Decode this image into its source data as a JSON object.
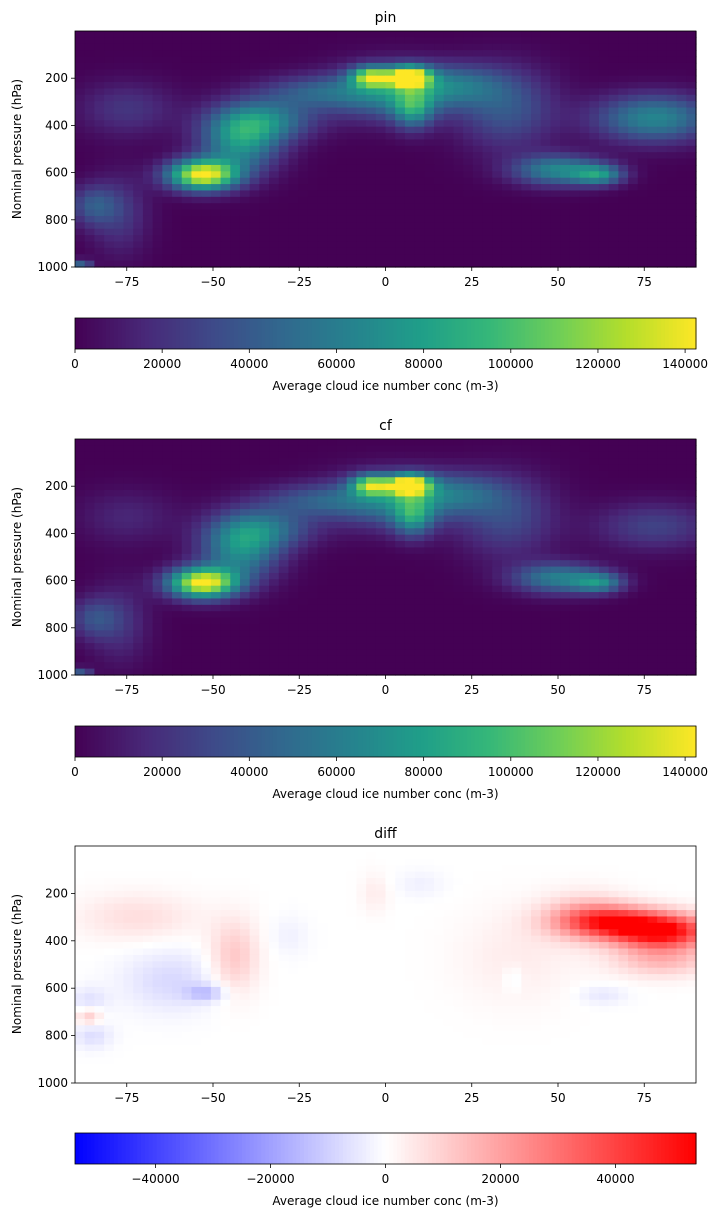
{
  "chart_data": [
    {
      "type": "heatmap",
      "title": "pin",
      "ylabel": "Nominal pressure (hPa)",
      "xlabel": "",
      "xlim": [
        -90,
        90
      ],
      "ylim": [
        1000,
        0
      ],
      "xticks": [
        -75,
        -50,
        -25,
        0,
        25,
        50,
        75
      ],
      "yticks": [
        200,
        400,
        600,
        800,
        1000
      ],
      "colormap": "viridis",
      "colorbar": {
        "label": "Average cloud ice number conc (m-3)",
        "range": [
          0,
          142500
        ],
        "ticks": [
          0,
          20000,
          40000,
          60000,
          80000,
          100000,
          120000,
          140000
        ],
        "orientation": "horizontal"
      },
      "features": [
        {
          "lat": -53,
          "p": 610,
          "value": 140000,
          "sx": 7,
          "sy": 45
        },
        {
          "lat": -42,
          "p": 470,
          "value": 70000,
          "sx": 8,
          "sy": 90
        },
        {
          "lat": -35,
          "p": 380,
          "value": 55000,
          "sx": 10,
          "sy": 60
        },
        {
          "lat": -20,
          "p": 260,
          "value": 38000,
          "sx": 12,
          "sy": 50
        },
        {
          "lat": 7,
          "p": 195,
          "value": 142000,
          "sx": 4,
          "sy": 30
        },
        {
          "lat": -4,
          "p": 195,
          "value": 100000,
          "sx": 4,
          "sy": 30
        },
        {
          "lat": 2,
          "p": 260,
          "value": 60000,
          "sx": 12,
          "sy": 80
        },
        {
          "lat": 8,
          "p": 330,
          "value": 55000,
          "sx": 4,
          "sy": 60
        },
        {
          "lat": 20,
          "p": 230,
          "value": 40000,
          "sx": 10,
          "sy": 60
        },
        {
          "lat": 35,
          "p": 330,
          "value": 38000,
          "sx": 10,
          "sy": 120
        },
        {
          "lat": 50,
          "p": 590,
          "value": 65000,
          "sx": 9,
          "sy": 45
        },
        {
          "lat": 62,
          "p": 610,
          "value": 60000,
          "sx": 5,
          "sy": 30
        },
        {
          "lat": 78,
          "p": 370,
          "value": 65000,
          "sx": 12,
          "sy": 70
        },
        {
          "lat": -75,
          "p": 330,
          "value": 22000,
          "sx": 10,
          "sy": 80
        },
        {
          "lat": -85,
          "p": 740,
          "value": 35000,
          "sx": 5,
          "sy": 60
        },
        {
          "lat": -77,
          "p": 780,
          "value": 22000,
          "sx": 6,
          "sy": 120
        },
        {
          "lat": -88,
          "p": 990,
          "value": 45000,
          "sx": 2,
          "sy": 15
        }
      ]
    },
    {
      "type": "heatmap",
      "title": "cf",
      "ylabel": "Nominal pressure (hPa)",
      "xlabel": "",
      "xlim": [
        -90,
        90
      ],
      "ylim": [
        1000,
        0
      ],
      "xticks": [
        -75,
        -50,
        -25,
        0,
        25,
        50,
        75
      ],
      "yticks": [
        200,
        400,
        600,
        800,
        1000
      ],
      "colormap": "viridis",
      "colorbar": {
        "label": "Average cloud ice number conc (m-3)",
        "range": [
          0,
          142500
        ],
        "ticks": [
          0,
          20000,
          40000,
          60000,
          80000,
          100000,
          120000,
          140000
        ],
        "orientation": "horizontal"
      },
      "features": [
        {
          "lat": -53,
          "p": 610,
          "value": 142000,
          "sx": 7,
          "sy": 45
        },
        {
          "lat": -42,
          "p": 470,
          "value": 65000,
          "sx": 8,
          "sy": 90
        },
        {
          "lat": -35,
          "p": 380,
          "value": 45000,
          "sx": 10,
          "sy": 60
        },
        {
          "lat": -20,
          "p": 260,
          "value": 35000,
          "sx": 12,
          "sy": 50
        },
        {
          "lat": 7,
          "p": 195,
          "value": 142000,
          "sx": 4,
          "sy": 30
        },
        {
          "lat": -4,
          "p": 195,
          "value": 95000,
          "sx": 4,
          "sy": 30
        },
        {
          "lat": 2,
          "p": 260,
          "value": 55000,
          "sx": 12,
          "sy": 80
        },
        {
          "lat": 8,
          "p": 330,
          "value": 55000,
          "sx": 4,
          "sy": 60
        },
        {
          "lat": 20,
          "p": 230,
          "value": 38000,
          "sx": 10,
          "sy": 60
        },
        {
          "lat": 35,
          "p": 330,
          "value": 32000,
          "sx": 10,
          "sy": 120
        },
        {
          "lat": 50,
          "p": 590,
          "value": 60000,
          "sx": 9,
          "sy": 45
        },
        {
          "lat": 62,
          "p": 610,
          "value": 55000,
          "sx": 5,
          "sy": 30
        },
        {
          "lat": 78,
          "p": 370,
          "value": 28000,
          "sx": 12,
          "sy": 70
        },
        {
          "lat": -75,
          "p": 330,
          "value": 15000,
          "sx": 10,
          "sy": 80
        },
        {
          "lat": -85,
          "p": 760,
          "value": 30000,
          "sx": 5,
          "sy": 60
        },
        {
          "lat": -77,
          "p": 780,
          "value": 20000,
          "sx": 6,
          "sy": 120
        },
        {
          "lat": -88,
          "p": 990,
          "value": 40000,
          "sx": 2,
          "sy": 15
        }
      ]
    },
    {
      "type": "heatmap",
      "title": "diff",
      "ylabel": "Nominal pressure (hPa)",
      "xlabel": "",
      "xlim": [
        -90,
        90
      ],
      "ylim": [
        1000,
        0
      ],
      "xticks": [
        -75,
        -50,
        -25,
        0,
        25,
        50,
        75
      ],
      "yticks": [
        200,
        400,
        600,
        800,
        1000
      ],
      "colormap": "bwr",
      "colorbar": {
        "label": "Average cloud ice number conc (m-3)",
        "range": [
          -54000,
          54000
        ],
        "ticks": [
          -40000,
          -20000,
          0,
          20000,
          40000
        ],
        "orientation": "horizontal"
      },
      "features": [
        {
          "lat": 80,
          "p": 360,
          "value": 54000,
          "sx": 10,
          "sy": 50
        },
        {
          "lat": 65,
          "p": 320,
          "value": 36000,
          "sx": 10,
          "sy": 45
        },
        {
          "lat": 58,
          "p": 300,
          "value": 14000,
          "sx": 9,
          "sy": 70
        },
        {
          "lat": 80,
          "p": 480,
          "value": 15000,
          "sx": 10,
          "sy": 50
        },
        {
          "lat": -72,
          "p": 300,
          "value": 7000,
          "sx": 12,
          "sy": 70
        },
        {
          "lat": -44,
          "p": 470,
          "value": 12000,
          "sx": 5,
          "sy": 110
        },
        {
          "lat": -62,
          "p": 570,
          "value": -8000,
          "sx": 10,
          "sy": 90
        },
        {
          "lat": -52,
          "p": 620,
          "value": -12000,
          "sx": 4,
          "sy": 25
        },
        {
          "lat": -86,
          "p": 720,
          "value": 12000,
          "sx": 2.5,
          "sy": 25
        },
        {
          "lat": -86,
          "p": 650,
          "value": -6000,
          "sx": 4,
          "sy": 40
        },
        {
          "lat": -85,
          "p": 800,
          "value": -7000,
          "sx": 4,
          "sy": 40
        },
        {
          "lat": -3,
          "p": 200,
          "value": 4000,
          "sx": 3,
          "sy": 60
        },
        {
          "lat": 10,
          "p": 160,
          "value": -3000,
          "sx": 5,
          "sy": 40
        },
        {
          "lat": 38,
          "p": 470,
          "value": 4000,
          "sx": 12,
          "sy": 140
        },
        {
          "lat": 63,
          "p": 630,
          "value": -5000,
          "sx": 5,
          "sy": 30
        },
        {
          "lat": 37,
          "p": 560,
          "value": -4000,
          "sx": 2,
          "sy": 40
        },
        {
          "lat": -28,
          "p": 380,
          "value": -3000,
          "sx": 4,
          "sy": 60
        }
      ]
    }
  ]
}
